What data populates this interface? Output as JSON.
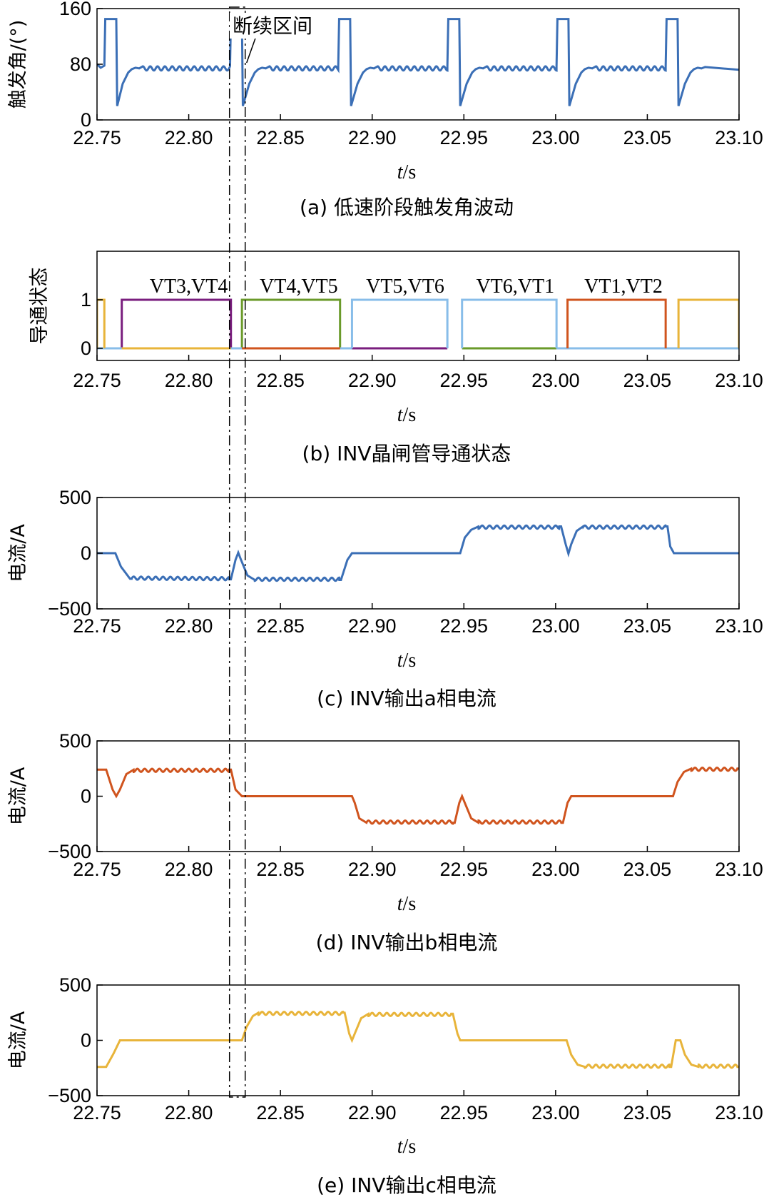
{
  "figure": {
    "captions": [
      "(a)  低速阶段触发角波动",
      "(b)  INV晶闸管导通状态",
      "(c)  INV输出a相电流",
      "(d)  INV输出b相电流",
      "(e)  INV输出c相电流"
    ],
    "discontinuity_label": "断续区间",
    "discontinuity_interval": [
      22.823,
      22.83
    ]
  },
  "chart_data": [
    {
      "id": "a",
      "type": "line",
      "title": "(a)  低速阶段触发角波动",
      "xlabel_italic": "t",
      "xlabel_unit": "/s",
      "ylabel": "触发角/(°)",
      "xlim": [
        22.75,
        23.1
      ],
      "ylim": [
        0,
        160
      ],
      "xticks": [
        "22.75",
        "22.80",
        "22.85",
        "22.90",
        "22.95",
        "23.00",
        "23.05",
        "23.10"
      ],
      "yticks": [
        "0",
        "80",
        "160"
      ],
      "series": [
        {
          "name": "触发角",
          "color": "#3b6fb6",
          "points": [
            [
              22.75,
              80
            ],
            [
              22.752,
              75
            ],
            [
              22.754,
              78
            ],
            [
              22.7545,
              145
            ],
            [
              22.7605,
              145
            ],
            [
              22.761,
              20
            ],
            [
              22.764,
              52
            ],
            [
              22.767,
              68
            ],
            [
              22.769,
              73
            ],
            [
              22.771,
              75
            ],
            [
              22.773,
              74
            ],
            [
              22.775,
              76
            ],
            [
              22.8225,
              76
            ],
            [
              22.823,
              145
            ],
            [
              22.829,
              145
            ],
            [
              22.8295,
              20
            ],
            [
              22.833,
              52
            ],
            [
              22.836,
              68
            ],
            [
              22.838,
              73
            ],
            [
              22.84,
              75
            ],
            [
              22.842,
              74
            ],
            [
              22.844,
              76
            ],
            [
              22.8815,
              76
            ],
            [
              22.882,
              145
            ],
            [
              22.888,
              145
            ],
            [
              22.8885,
              20
            ],
            [
              22.892,
              52
            ],
            [
              22.895,
              68
            ],
            [
              22.897,
              73
            ],
            [
              22.899,
              75
            ],
            [
              22.901,
              74
            ],
            [
              22.903,
              76
            ],
            [
              22.941,
              76
            ],
            [
              22.9415,
              145
            ],
            [
              22.9475,
              145
            ],
            [
              22.948,
              20
            ],
            [
              22.9515,
              52
            ],
            [
              22.9545,
              68
            ],
            [
              22.9565,
              73
            ],
            [
              22.9585,
              75
            ],
            [
              22.9605,
              74
            ],
            [
              22.9625,
              76
            ],
            [
              23.0005,
              76
            ],
            [
              23.001,
              145
            ],
            [
              23.007,
              145
            ],
            [
              23.0075,
              20
            ],
            [
              23.011,
              52
            ],
            [
              23.014,
              68
            ],
            [
              23.016,
              73
            ],
            [
              23.018,
              75
            ],
            [
              23.02,
              74
            ],
            [
              23.022,
              76
            ],
            [
              23.06,
              76
            ],
            [
              23.0605,
              145
            ],
            [
              23.0665,
              145
            ],
            [
              23.067,
              20
            ],
            [
              23.0705,
              52
            ],
            [
              23.0735,
              68
            ],
            [
              23.0755,
              73
            ],
            [
              23.0775,
              75
            ],
            [
              23.0795,
              74
            ],
            [
              23.0815,
              76
            ],
            [
              23.1,
              72
            ]
          ],
          "ripple_amplitude": 6,
          "ripple_period": 0.004
        }
      ]
    },
    {
      "id": "b",
      "type": "line",
      "title": "(b)  INV晶闸管导通状态",
      "xlabel_italic": "t",
      "xlabel_unit": "/s",
      "ylabel": "导通状态",
      "xlim": [
        22.75,
        23.1
      ],
      "ylim": [
        -0.25,
        2.0
      ],
      "xticks": [
        "22.75",
        "22.80",
        "22.85",
        "22.90",
        "22.95",
        "23.00",
        "23.05",
        "23.10"
      ],
      "yticks": [
        "0",
        "1"
      ],
      "annotations": [
        "VT3,VT4",
        "VT4,VT5",
        "VT5,VT6",
        "VT6,VT1",
        "VT1,VT2"
      ],
      "annotation_x": [
        22.8,
        22.86,
        22.918,
        22.978,
        23.037
      ],
      "series": [
        {
          "name": "紫",
          "color": "#7a1e7e",
          "segments": [
            [
              22.7635,
              22.823,
              1
            ],
            [
              22.889,
              22.941,
              0
            ]
          ]
        },
        {
          "name": "绿",
          "color": "#6a9a2a",
          "segments": [
            [
              22.829,
              22.8825,
              1
            ],
            [
              22.949,
              23.0005,
              0
            ]
          ]
        },
        {
          "name": "蓝",
          "color": "#88bde9",
          "segments": [
            [
              22.75,
              22.889,
              0
            ],
            [
              22.889,
              22.941,
              1
            ],
            [
              22.949,
              23.0005,
              1
            ],
            [
              23.0005,
              23.1,
              0
            ]
          ]
        },
        {
          "name": "红",
          "color": "#d0541e",
          "segments": [
            [
              23.0065,
              23.06,
              1
            ],
            [
              22.829,
              22.8825,
              0
            ]
          ]
        },
        {
          "name": "黄",
          "color": "#e8b43a",
          "segments": [
            [
              22.75,
              22.754,
              1
            ],
            [
              23.067,
              23.1,
              1
            ],
            [
              22.7635,
              22.823,
              0
            ]
          ]
        }
      ]
    },
    {
      "id": "c",
      "type": "line",
      "title": "(c)  INV输出a相电流",
      "xlabel_italic": "t",
      "xlabel_unit": "/s",
      "ylabel": "电流/A",
      "xlim": [
        22.75,
        23.1
      ],
      "ylim": [
        -500,
        500
      ],
      "xticks": [
        "22.75",
        "22.80",
        "22.85",
        "22.90",
        "22.95",
        "23.00",
        "23.05",
        "23.10"
      ],
      "yticks": [
        "−500",
        "0",
        "500"
      ],
      "series": [
        {
          "name": "a相电流",
          "color": "#3b6fb6",
          "level": -250,
          "breakpoints": [
            [
              22.75,
              0
            ],
            [
              22.76,
              0
            ],
            [
              22.763,
              -120
            ],
            [
              22.768,
              -230
            ],
            [
              22.823,
              -235
            ],
            [
              22.8255,
              -60
            ],
            [
              22.827,
              5
            ],
            [
              22.8285,
              -60
            ],
            [
              22.832,
              -200
            ],
            [
              22.836,
              -240
            ],
            [
              22.883,
              -240
            ],
            [
              22.8865,
              -60
            ],
            [
              22.889,
              0
            ],
            [
              22.948,
              0
            ],
            [
              22.9505,
              140
            ],
            [
              22.954,
              210
            ],
            [
              22.958,
              240
            ],
            [
              23.003,
              240
            ],
            [
              23.0055,
              80
            ],
            [
              23.007,
              -5
            ],
            [
              23.0085,
              80
            ],
            [
              23.0115,
              200
            ],
            [
              23.015,
              240
            ],
            [
              23.061,
              240
            ],
            [
              23.0625,
              60
            ],
            [
              23.0645,
              0
            ],
            [
              23.1,
              0
            ]
          ],
          "ripple": [
            [
              22.769,
              22.822
            ],
            [
              22.836,
              22.882
            ],
            [
              22.958,
              23.002
            ],
            [
              23.015,
              23.06
            ]
          ]
        }
      ]
    },
    {
      "id": "d",
      "type": "line",
      "title": "(d)  INV输出b相电流",
      "xlabel_italic": "t",
      "xlabel_unit": "/s",
      "ylabel": "电流/A",
      "xlim": [
        22.75,
        23.1
      ],
      "ylim": [
        -500,
        500
      ],
      "xticks": [
        "22.75",
        "22.80",
        "22.85",
        "22.90",
        "22.95",
        "23.00",
        "23.05",
        "23.10"
      ],
      "yticks": [
        "−500",
        "0",
        "500"
      ],
      "series": [
        {
          "name": "b相电流",
          "color": "#d0541e",
          "breakpoints": [
            [
              22.75,
              240
            ],
            [
              22.755,
              240
            ],
            [
              22.7585,
              60
            ],
            [
              22.7605,
              0
            ],
            [
              22.7625,
              60
            ],
            [
              22.766,
              200
            ],
            [
              22.77,
              240
            ],
            [
              22.823,
              240
            ],
            [
              22.8255,
              60
            ],
            [
              22.829,
              0
            ],
            [
              22.889,
              0
            ],
            [
              22.8905,
              -60
            ],
            [
              22.893,
              -200
            ],
            [
              22.897,
              -240
            ],
            [
              22.945,
              -240
            ],
            [
              22.9475,
              -60
            ],
            [
              22.949,
              0
            ],
            [
              22.9505,
              -60
            ],
            [
              22.954,
              -200
            ],
            [
              22.958,
              -240
            ],
            [
              23.004,
              -240
            ],
            [
              23.0065,
              -60
            ],
            [
              23.0085,
              0
            ],
            [
              23.064,
              0
            ],
            [
              23.0665,
              130
            ],
            [
              23.07,
              220
            ],
            [
              23.074,
              250
            ],
            [
              23.1,
              250
            ]
          ],
          "ripple": [
            [
              22.77,
              22.822
            ],
            [
              22.897,
              22.944
            ],
            [
              22.958,
              23.003
            ],
            [
              23.074,
              23.099
            ]
          ]
        }
      ]
    },
    {
      "id": "e",
      "type": "line",
      "title": "(e)  INV输出c相电流",
      "xlabel_italic": "t",
      "xlabel_unit": "/s",
      "ylabel": "电流/A",
      "xlim": [
        22.75,
        23.1
      ],
      "ylim": [
        -500,
        500
      ],
      "xticks": [
        "22.75",
        "22.80",
        "22.85",
        "22.90",
        "22.95",
        "23.00",
        "23.05",
        "23.10"
      ],
      "yticks": [
        "−500",
        "0",
        "500"
      ],
      "series": [
        {
          "name": "c相电流",
          "color": "#e8b43a",
          "breakpoints": [
            [
              22.75,
              -240
            ],
            [
              22.755,
              -240
            ],
            [
              22.759,
              -120
            ],
            [
              22.7625,
              0
            ],
            [
              22.829,
              0
            ],
            [
              22.8315,
              120
            ],
            [
              22.835,
              220
            ],
            [
              22.838,
              250
            ],
            [
              22.885,
              250
            ],
            [
              22.8875,
              60
            ],
            [
              22.889,
              0
            ],
            [
              22.8905,
              60
            ],
            [
              22.894,
              200
            ],
            [
              22.898,
              240
            ],
            [
              22.944,
              240
            ],
            [
              22.9465,
              60
            ],
            [
              22.948,
              0
            ],
            [
              23.006,
              0
            ],
            [
              23.0085,
              -130
            ],
            [
              23.012,
              -220
            ],
            [
              23.016,
              -240
            ],
            [
              23.063,
              -240
            ],
            [
              23.0655,
              0
            ],
            [
              23.068,
              0
            ],
            [
              23.0705,
              -130
            ],
            [
              23.074,
              -220
            ],
            [
              23.078,
              -240
            ],
            [
              23.1,
              -240
            ]
          ],
          "ripple": [
            [
              22.838,
              22.884
            ],
            [
              22.898,
              22.943
            ],
            [
              23.016,
              23.062
            ],
            [
              23.078,
              23.099
            ]
          ]
        }
      ]
    }
  ]
}
